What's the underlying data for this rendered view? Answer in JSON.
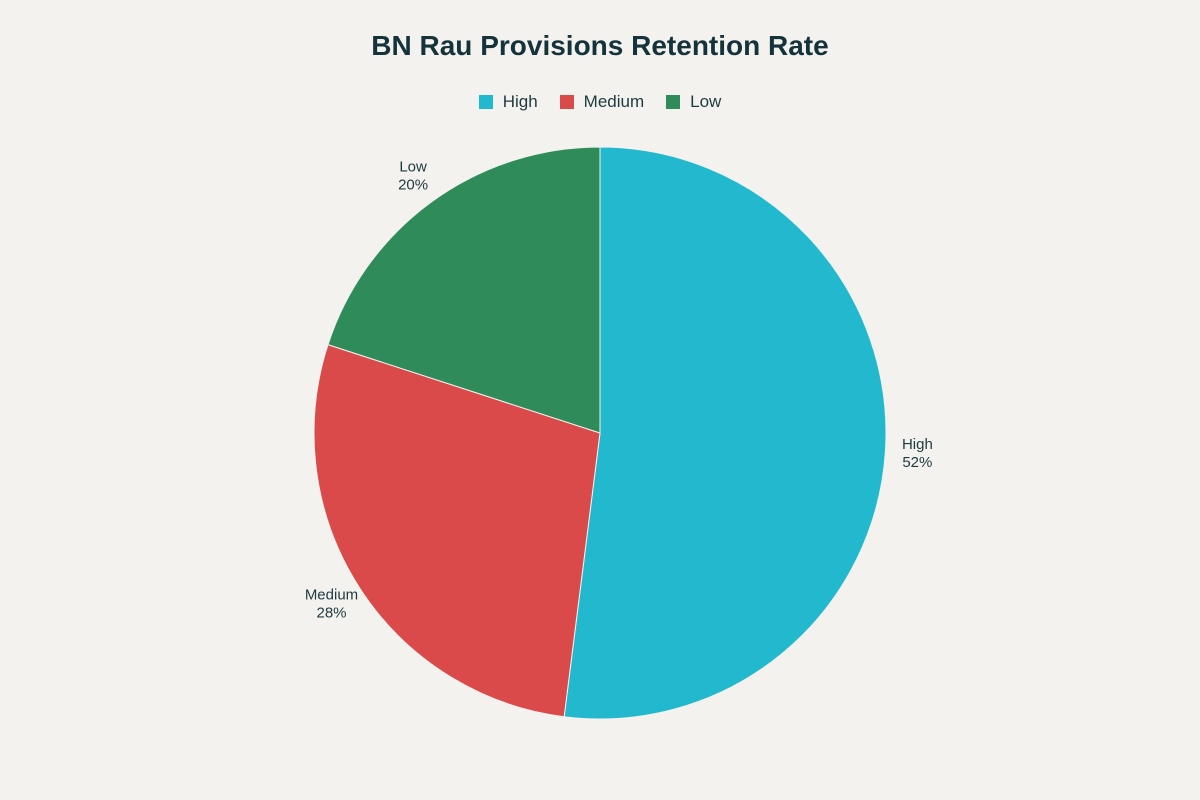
{
  "chart_data": {
    "type": "pie",
    "title": "BN Rau Provisions Retention Rate",
    "legend_position": "top",
    "slices": [
      {
        "label": "High",
        "value": 52,
        "display": "52%",
        "color": "#22b8ce"
      },
      {
        "label": "Medium",
        "value": 28,
        "display": "28%",
        "color": "#db4a4a"
      },
      {
        "label": "Low",
        "value": 20,
        "display": "20%",
        "color": "#2f8b5a"
      }
    ]
  }
}
